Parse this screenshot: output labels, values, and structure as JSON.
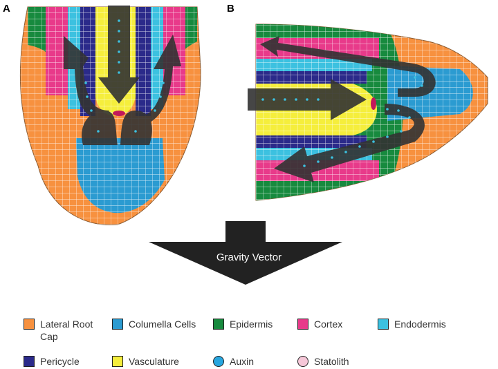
{
  "panels": {
    "a": "A",
    "b": "B"
  },
  "arrow": {
    "label": "Gravity Vector"
  },
  "colors": {
    "lateral_root_cap": "#f7913f",
    "columella": "#2b9bd1",
    "epidermis": "#178a3e",
    "cortex": "#e83a8a",
    "endodermis": "#3cc1e0",
    "pericycle": "#2b2a8a",
    "vasculature": "#f5ee3c",
    "auxin": "#27a6df",
    "statolith": "#f6c7d8",
    "flow_arrow": "#333333"
  },
  "legend": [
    {
      "label": "Lateral Root Cap",
      "color": "#f7913f",
      "shape": "square"
    },
    {
      "label": "Columella Cells",
      "color": "#2b9bd1",
      "shape": "square"
    },
    {
      "label": "Epidermis",
      "color": "#178a3e",
      "shape": "square"
    },
    {
      "label": "Cortex",
      "color": "#e83a8a",
      "shape": "square"
    },
    {
      "label": "Endodermis",
      "color": "#3cc1e0",
      "shape": "square"
    },
    {
      "label": "Pericycle",
      "color": "#2b2a8a",
      "shape": "square"
    },
    {
      "label": "Vasculature",
      "color": "#f5ee3c",
      "shape": "square"
    },
    {
      "label": "Auxin",
      "color": "#27a6df",
      "shape": "circle"
    },
    {
      "label": "Statolith",
      "color": "#f6c7d8",
      "shape": "circle"
    }
  ]
}
